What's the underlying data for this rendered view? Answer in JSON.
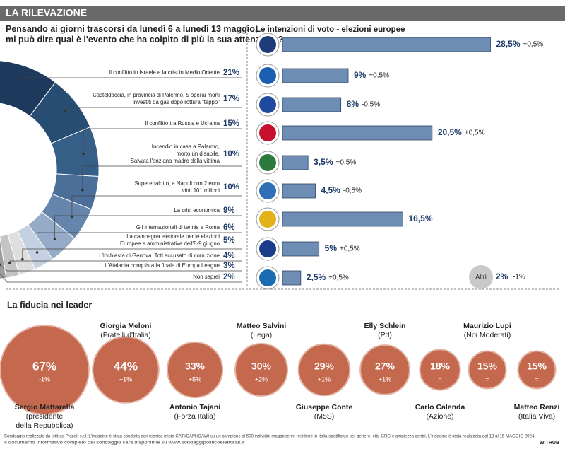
{
  "header": {
    "title": "LA RILEVAZIONE"
  },
  "chart_data": [
    {
      "type": "pie",
      "title": [
        "Pensando ai giorni trascorsi da lunedì 6 a lunedì 13 maggio,",
        "mi può dire qual è l'evento che ha colpito di più la sua attenzione?"
      ],
      "categories": [
        [
          "Il conflitto in Israele e la crisi in Medio Oriente"
        ],
        [
          "Casteldaccia, in provincia di Palermo, 5 operai morti",
          "investiti da gas dopo rottura \"tappo\""
        ],
        [
          "Il conflitto tra Russia e Ucraina"
        ],
        [
          "Incendio in casa a Palermo,",
          "morto un disabile.",
          "Salvata l'anziana madre della vittima"
        ],
        [
          "Superenalotto, a Napoli con 2 euro",
          "vinti 101 milioni"
        ],
        [
          "La crisi economica"
        ],
        [
          "Gli internazionali di tennis a Roma"
        ],
        [
          "La campagna elettorale per le elezioni",
          "Europee e amministrative dell'8-9 giugno"
        ],
        [
          "L'inchiesta di Genova. Toti accusato di corruzione"
        ],
        [
          "L'Atalanta conquista la finale di Europa League"
        ],
        [
          "Non saprei"
        ]
      ],
      "values": [
        21,
        17,
        15,
        10,
        10,
        9,
        6,
        5,
        4,
        3,
        2
      ],
      "value_labels": [
        "21%",
        "17%",
        "15%",
        "10%",
        "10%",
        "9%",
        "6%",
        "5%",
        "4%",
        "3%",
        "2%"
      ],
      "colors": [
        "#1d3a5c",
        "#284d73",
        "#365f88",
        "#4c6f9a",
        "#6685ad",
        "#95abc8",
        "#c5d1e0",
        "#dedede",
        "#c4c4c4",
        "#9d9d9d",
        "#6e6e6e"
      ]
    },
    {
      "type": "bar",
      "title": "Le intenzioni di voto - elezioni europee",
      "categories": [
        null,
        null,
        null,
        null,
        null,
        null,
        null,
        null,
        null
      ],
      "values": [
        28.5,
        9,
        8,
        20.5,
        3.5,
        4.5,
        16.5,
        5,
        2.5
      ],
      "value_labels": [
        "28,5%",
        "9%",
        "8%",
        "20,5%",
        "3,5%",
        "4,5%",
        "16,5%",
        "5%",
        "2,5%"
      ],
      "changes": [
        "+0,5%",
        "+0,5%",
        "-0,5%",
        "+0,5%",
        "+0,5%",
        "-0,5%",
        null,
        "+0,5%",
        "+0,5%"
      ],
      "color": "#6e8db5",
      "xlim": [
        0,
        30
      ],
      "other": {
        "label": "Altri",
        "value_label": "2%",
        "change": "-1%"
      }
    },
    {
      "type": "bubble",
      "title": "La fiducia nei leader",
      "names": [
        "Sergio Mattarella",
        "Giorgia Meloni",
        "Antonio Tajani",
        "Matteo Salvini",
        "Giuseppe Conte",
        "Elly Schlein",
        "Carlo Calenda",
        "Maurizio Lupi",
        "Matteo Renzi"
      ],
      "parties": [
        [
          "(presidente",
          "della Repubblica)"
        ],
        [
          "(Fratelli d'Italia)"
        ],
        [
          "(Forza Italia)"
        ],
        [
          "(Lega)"
        ],
        [
          "(M5S)"
        ],
        [
          "(Pd)"
        ],
        [
          "(Azione)"
        ],
        [
          "(Noi Moderati)"
        ],
        [
          "(Italia Viva)"
        ]
      ],
      "values": [
        67,
        44,
        33,
        30,
        29,
        27,
        18,
        15,
        15
      ],
      "value_labels": [
        "67%",
        "44%",
        "33%",
        "30%",
        "29%",
        "27%",
        "18%",
        "15%",
        "15%"
      ],
      "changes": [
        "-1%",
        "+1%",
        "+5%",
        "+2%",
        "+1%",
        "+1%",
        "=",
        "=",
        "="
      ],
      "color": "#c4694e"
    }
  ],
  "footer": {
    "lines": [
      "Sondaggio realizzato da Istituto Piepoli s.r.l. L'indagine è stata condotta con tecnica mista CATI/CAMI/CAWI su un campione di 500 individui maggiorenni residenti in Italia stratificato per genere, età, GRG e ampiezza centri. L'indagine è stata realizzata dal 13 al 15 MAGGIO 2024.",
      "Il documento informativo completo del sondaggio sarà disponibile su www.sondaggipoliticoelettorali.it"
    ],
    "logo": "WITHUB"
  }
}
